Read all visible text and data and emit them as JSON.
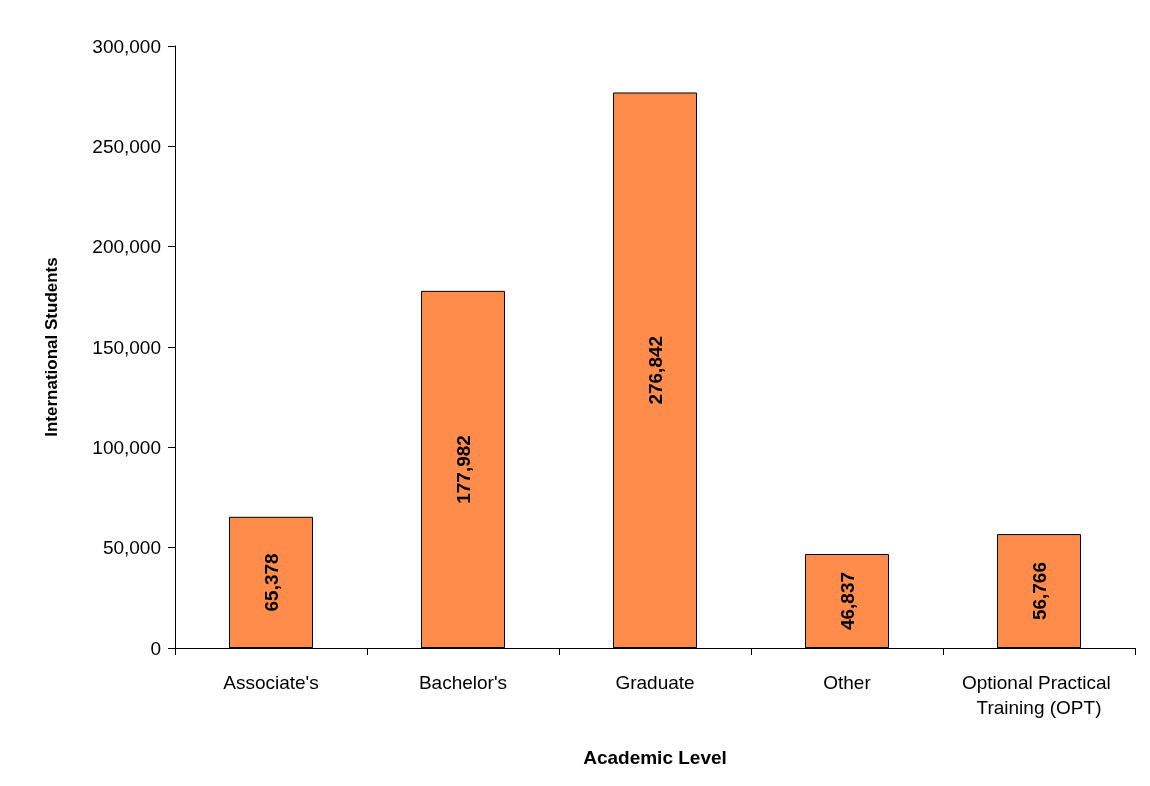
{
  "chart_data": {
    "type": "bar",
    "xlabel": "Academic Level",
    "ylabel": "International Students",
    "categories": [
      "Associate's",
      "Bachelor's",
      "Graduate",
      "Other",
      "Optional Practical Training (OPT)"
    ],
    "values": [
      65378,
      177982,
      276842,
      46837,
      56766
    ],
    "color": "#ff8c4a",
    "ylim": [
      0,
      300000
    ],
    "yticks": [
      {
        "value": 0,
        "label": "0"
      },
      {
        "value": 50000,
        "label": "50,000"
      },
      {
        "value": 100000,
        "label": "100,000"
      },
      {
        "value": 150000,
        "label": "150,000"
      },
      {
        "value": 200000,
        "label": "200,000"
      },
      {
        "value": 250000,
        "label": "250,000"
      },
      {
        "value": 300000,
        "label": "300,000"
      }
    ],
    "value_labels": [
      "65,378",
      "177,982",
      "276,842",
      "46,837",
      "56,766"
    ],
    "grid": false
  }
}
